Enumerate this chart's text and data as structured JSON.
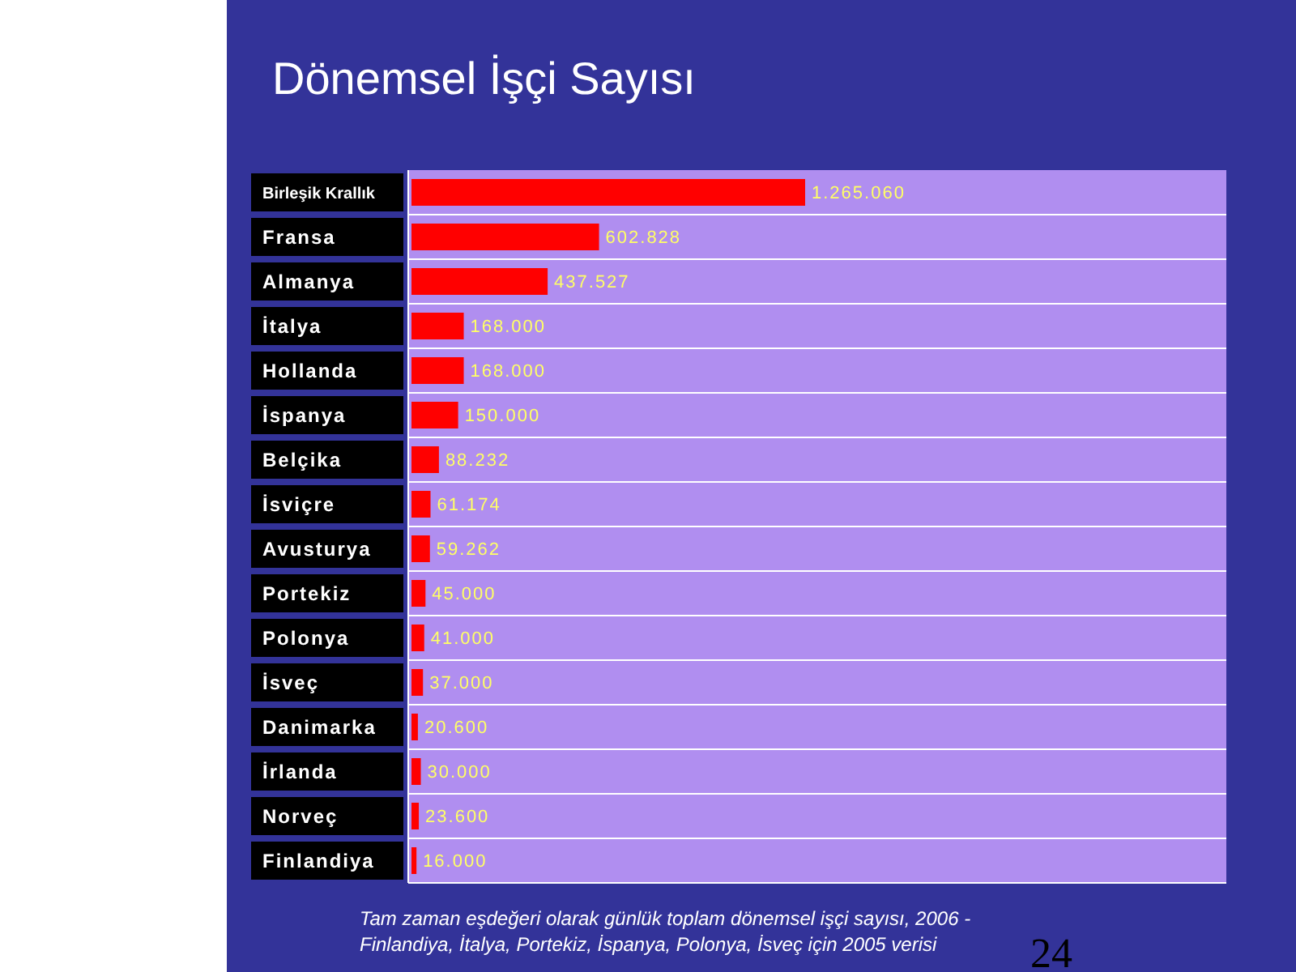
{
  "chart_data": {
    "type": "bar",
    "orientation": "horizontal",
    "title": "Dönemsel İşçi Sayısı",
    "categories": [
      "Birleşik Krallık",
      "Fransa",
      "Almanya",
      "İtalya",
      "Hollanda",
      "İspanya",
      "Belçika",
      "İsviçre",
      "Avusturya",
      "Portekiz",
      "Polonya",
      "İsveç",
      "Danimarka",
      "İrlanda",
      "Norveç",
      "Finlandiya"
    ],
    "values": [
      1265060,
      602828,
      437527,
      168000,
      168000,
      150000,
      88232,
      61174,
      59262,
      45000,
      41000,
      37000,
      20600,
      30000,
      23600,
      16000
    ],
    "color": "#ff0000",
    "value_labels": [
      "1.265.060",
      "602.828",
      "437.527",
      "168.000",
      "168.000",
      "150.000",
      "88.232",
      "61.174",
      "59.262",
      "45.000",
      "41.000",
      "37.000",
      "20.600",
      "30.000",
      "23.600",
      "16.000"
    ],
    "grid": "y",
    "tick_labels": "y",
    "annotations": [
      "Tam zaman eşdeğeri olarak günlük toplam dönemsel işçi sayısı, 2006 - Finlandiya, İtalya, Portekiz, İspanya, Polonya, İsveç için 2005 verisi",
      "24"
    ]
  }
}
